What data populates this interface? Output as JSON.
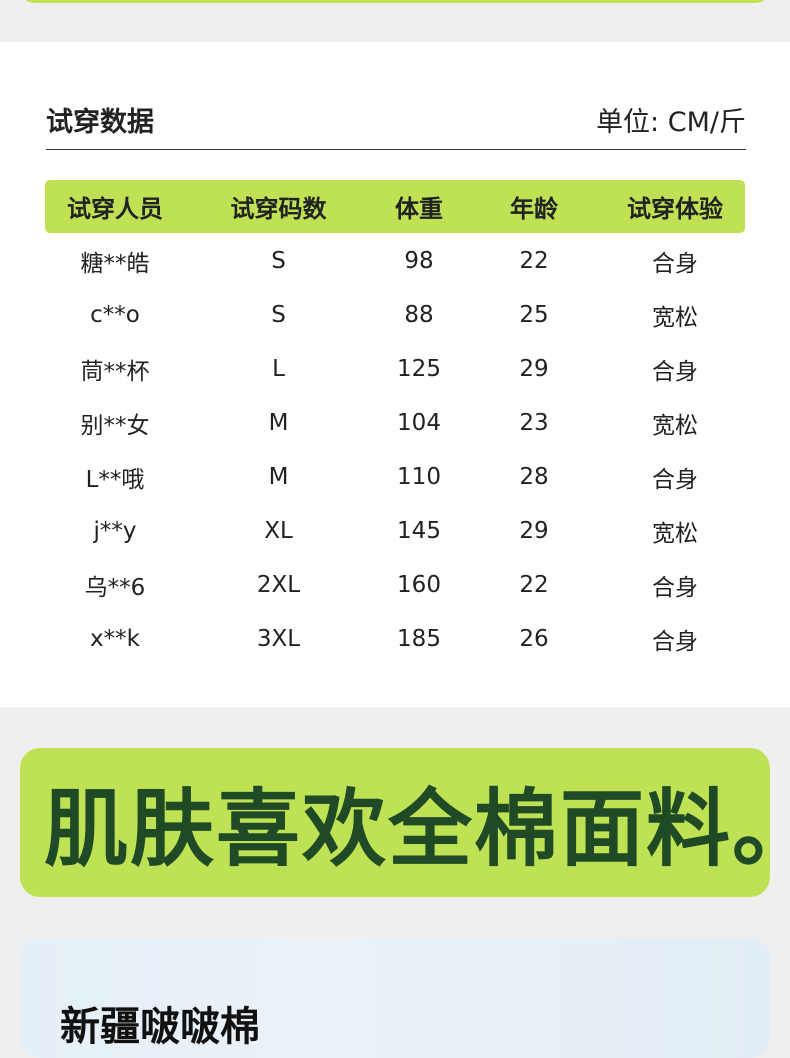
{
  "section": {
    "title": "试穿数据",
    "unit": "单位: CM/斤"
  },
  "table": {
    "headers": [
      "试穿人员",
      "试穿码数",
      "体重",
      "年龄",
      "试穿体验"
    ],
    "rows": [
      [
        "糖**皓",
        "S",
        "98",
        "22",
        "合身"
      ],
      [
        "c**o",
        "S",
        "88",
        "25",
        "宽松"
      ],
      [
        "茼**杯",
        "L",
        "125",
        "29",
        "合身"
      ],
      [
        "别**女",
        "M",
        "104",
        "23",
        "宽松"
      ],
      [
        "L**哦",
        "M",
        "110",
        "28",
        "合身"
      ],
      [
        "j**y",
        "XL",
        "145",
        "29",
        "宽松"
      ],
      [
        "乌**6",
        "2XL",
        "160",
        "22",
        "合身"
      ],
      [
        "x**k",
        "3XL",
        "185",
        "26",
        "合身"
      ]
    ]
  },
  "banner": {
    "text": "肌肤喜欢全棉面料。"
  },
  "card": {
    "title": "新疆啵啵棉"
  },
  "colors": {
    "accent": "#bfe255",
    "banner_text": "#1f4a25"
  }
}
